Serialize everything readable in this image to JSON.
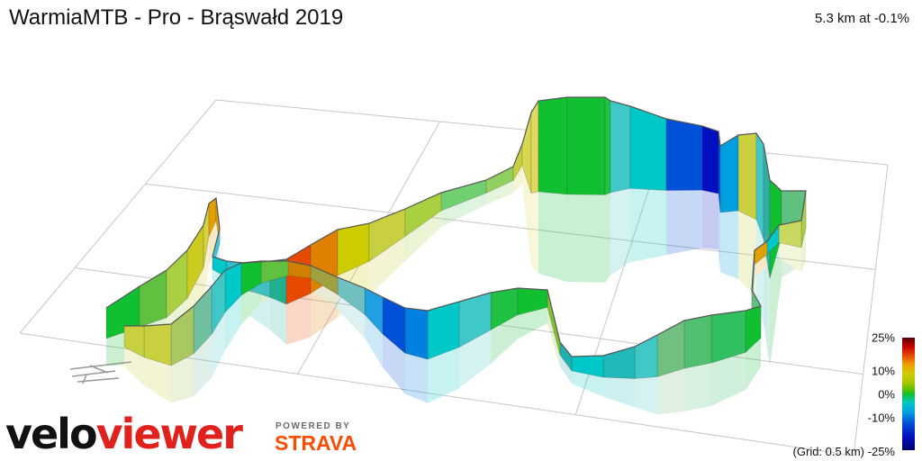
{
  "header": {
    "title": "WarmiaMTB - Pro - Brąswałd 2019",
    "stats": "5.3 km at -0.1%"
  },
  "legend": {
    "scale_labels": [
      "25%",
      "10%",
      "0%",
      "-10%",
      "-25%"
    ],
    "grid_note": "(Grid: 0.5 km)",
    "colors": [
      "#5a0000",
      "#c80000",
      "#f0a000",
      "#cccc00",
      "#10c030",
      "#00c8c8",
      "#0050d8",
      "#00006a"
    ]
  },
  "branding": {
    "logo_part1": "velo",
    "logo_part2": "viewer",
    "powered_by": "POWERED BY",
    "partner": "STRAVA"
  },
  "chart_data": {
    "type": "3d-route-elevation",
    "distance_km": 5.3,
    "average_gradient_pct": -0.1,
    "color_scale_pct": [
      25,
      10,
      0,
      -10,
      -25
    ],
    "grid_spacing_km": 0.5
  }
}
